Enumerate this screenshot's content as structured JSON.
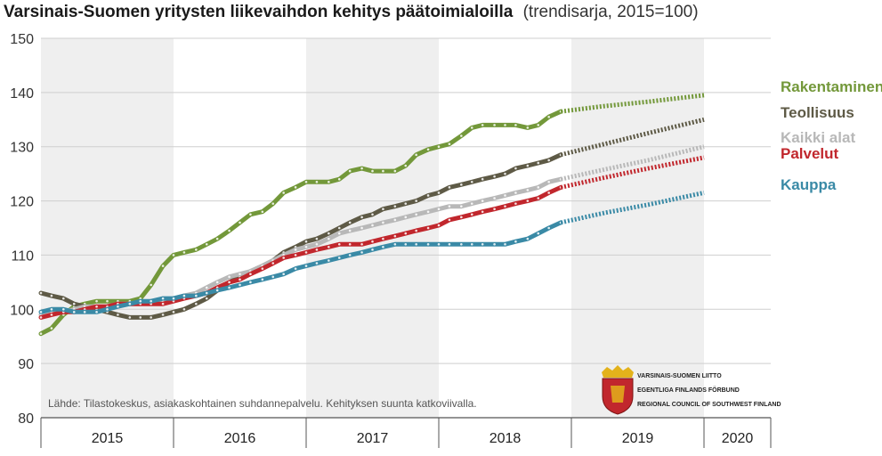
{
  "chart_data": {
    "type": "line",
    "title": "Varsinais-Suomen yritysten liikevaihdon kehitys päätoimialoilla",
    "subtitle": "(trendisarja, 2015=100)",
    "source_note": "Lähde: Tilastokeskus, asiakaskohtainen suhdannepalvelu. Kehityksen suunta katkoviivalla.",
    "logo_text": [
      "VARSINAIS-SUOMEN LIITTO",
      "EGENTLIGA FINLANDS FÖRBUND",
      "REGIONAL COUNCIL OF SOUTHWEST FINLAND"
    ],
    "ylim": [
      80,
      150
    ],
    "yticks": [
      80,
      90,
      100,
      110,
      120,
      130,
      140,
      150
    ],
    "xlim": [
      2015,
      2020.5
    ],
    "year_labels": [
      "2015",
      "2016",
      "2017",
      "2018",
      "2019",
      "2020"
    ],
    "grid": true,
    "legend": "labels at right end of lines",
    "series": [
      {
        "name": "Rakentaminen",
        "color": "#73983a",
        "points": [
          [
            2015.0,
            95.5
          ],
          [
            2015.08,
            96.5
          ],
          [
            2015.17,
            99
          ],
          [
            2015.25,
            100.5
          ],
          [
            2015.33,
            101
          ],
          [
            2015.42,
            101.5
          ],
          [
            2015.5,
            101.5
          ],
          [
            2015.58,
            101.5
          ],
          [
            2015.67,
            101.5
          ],
          [
            2015.75,
            102
          ],
          [
            2015.83,
            104.5
          ],
          [
            2015.92,
            108
          ],
          [
            2016.0,
            110
          ],
          [
            2016.08,
            110.5
          ],
          [
            2016.17,
            111
          ],
          [
            2016.25,
            112
          ],
          [
            2016.33,
            113
          ],
          [
            2016.42,
            114.5
          ],
          [
            2016.5,
            116
          ],
          [
            2016.58,
            117.5
          ],
          [
            2016.67,
            118
          ],
          [
            2016.75,
            119.5
          ],
          [
            2016.83,
            121.5
          ],
          [
            2016.92,
            122.5
          ],
          [
            2017.0,
            123.5
          ],
          [
            2017.08,
            123.5
          ],
          [
            2017.17,
            123.5
          ],
          [
            2017.25,
            124
          ],
          [
            2017.33,
            125.5
          ],
          [
            2017.42,
            126
          ],
          [
            2017.5,
            125.5
          ],
          [
            2017.58,
            125.5
          ],
          [
            2017.67,
            125.5
          ],
          [
            2017.75,
            126.5
          ],
          [
            2017.83,
            128.5
          ],
          [
            2017.92,
            129.5
          ],
          [
            2018.0,
            130
          ],
          [
            2018.08,
            130.5
          ],
          [
            2018.17,
            132
          ],
          [
            2018.25,
            133.5
          ],
          [
            2018.33,
            134
          ],
          [
            2018.42,
            134
          ],
          [
            2018.5,
            134
          ],
          [
            2018.58,
            134
          ],
          [
            2018.67,
            133.5
          ],
          [
            2018.75,
            134
          ],
          [
            2018.83,
            135.5
          ],
          [
            2018.92,
            136.5
          ]
        ],
        "trend": [
          [
            2018.92,
            136.5
          ],
          [
            2019.25,
            137.5
          ],
          [
            2019.58,
            138.3
          ],
          [
            2020.0,
            139.5
          ]
        ]
      },
      {
        "name": "Teollisuus",
        "color": "#5e5a46",
        "points": [
          [
            2015.0,
            103
          ],
          [
            2015.08,
            102.5
          ],
          [
            2015.17,
            102
          ],
          [
            2015.25,
            101
          ],
          [
            2015.33,
            100.5
          ],
          [
            2015.42,
            100
          ],
          [
            2015.5,
            99.5
          ],
          [
            2015.58,
            99
          ],
          [
            2015.67,
            98.5
          ],
          [
            2015.75,
            98.5
          ],
          [
            2015.83,
            98.5
          ],
          [
            2015.92,
            99
          ],
          [
            2016.0,
            99.5
          ],
          [
            2016.08,
            100
          ],
          [
            2016.17,
            101
          ],
          [
            2016.25,
            102
          ],
          [
            2016.33,
            103.5
          ],
          [
            2016.42,
            105
          ],
          [
            2016.5,
            106
          ],
          [
            2016.58,
            107
          ],
          [
            2016.67,
            108
          ],
          [
            2016.75,
            109
          ],
          [
            2016.83,
            110.5
          ],
          [
            2016.92,
            111.5
          ],
          [
            2017.0,
            112.5
          ],
          [
            2017.08,
            113
          ],
          [
            2017.17,
            114
          ],
          [
            2017.25,
            115
          ],
          [
            2017.33,
            116
          ],
          [
            2017.42,
            117
          ],
          [
            2017.5,
            117.5
          ],
          [
            2017.58,
            118.5
          ],
          [
            2017.67,
            119
          ],
          [
            2017.75,
            119.5
          ],
          [
            2017.83,
            120
          ],
          [
            2017.92,
            121
          ],
          [
            2018.0,
            121.5
          ],
          [
            2018.08,
            122.5
          ],
          [
            2018.17,
            123
          ],
          [
            2018.25,
            123.5
          ],
          [
            2018.33,
            124
          ],
          [
            2018.42,
            124.5
          ],
          [
            2018.5,
            125
          ],
          [
            2018.58,
            126
          ],
          [
            2018.67,
            126.5
          ],
          [
            2018.75,
            127
          ],
          [
            2018.83,
            127.5
          ],
          [
            2018.92,
            128.5
          ]
        ],
        "trend": [
          [
            2018.92,
            128.5
          ],
          [
            2019.25,
            130.5
          ],
          [
            2019.58,
            132.5
          ],
          [
            2020.0,
            135
          ]
        ]
      },
      {
        "name": "Kaikki alat",
        "color": "#b8b8b8",
        "points": [
          [
            2015.0,
            99
          ],
          [
            2015.08,
            99.5
          ],
          [
            2015.17,
            99.5
          ],
          [
            2015.25,
            100
          ],
          [
            2015.33,
            100.5
          ],
          [
            2015.42,
            100.5
          ],
          [
            2015.5,
            100.5
          ],
          [
            2015.58,
            101
          ],
          [
            2015.67,
            101
          ],
          [
            2015.75,
            101
          ],
          [
            2015.83,
            101.5
          ],
          [
            2015.92,
            101.5
          ],
          [
            2016.0,
            102
          ],
          [
            2016.08,
            102.5
          ],
          [
            2016.17,
            103
          ],
          [
            2016.25,
            104
          ],
          [
            2016.33,
            105
          ],
          [
            2016.42,
            106
          ],
          [
            2016.5,
            106.5
          ],
          [
            2016.58,
            107
          ],
          [
            2016.67,
            108
          ],
          [
            2016.75,
            109
          ],
          [
            2016.83,
            110
          ],
          [
            2016.92,
            111
          ],
          [
            2017.0,
            111.5
          ],
          [
            2017.08,
            112
          ],
          [
            2017.17,
            113
          ],
          [
            2017.25,
            114
          ],
          [
            2017.33,
            114.5
          ],
          [
            2017.42,
            115
          ],
          [
            2017.5,
            115.5
          ],
          [
            2017.58,
            116
          ],
          [
            2017.67,
            116.5
          ],
          [
            2017.75,
            117
          ],
          [
            2017.83,
            117.5
          ],
          [
            2017.92,
            118
          ],
          [
            2018.0,
            118.5
          ],
          [
            2018.08,
            119
          ],
          [
            2018.17,
            119
          ],
          [
            2018.25,
            119.5
          ],
          [
            2018.33,
            120
          ],
          [
            2018.42,
            120.5
          ],
          [
            2018.5,
            121
          ],
          [
            2018.58,
            121.5
          ],
          [
            2018.67,
            122
          ],
          [
            2018.75,
            122.5
          ],
          [
            2018.83,
            123.5
          ],
          [
            2018.92,
            124
          ]
        ],
        "trend": [
          [
            2018.92,
            124
          ],
          [
            2019.25,
            125.8
          ],
          [
            2019.58,
            127.5
          ],
          [
            2020.0,
            130
          ]
        ]
      },
      {
        "name": "Palvelut",
        "color": "#c1272d",
        "points": [
          [
            2015.0,
            98.5
          ],
          [
            2015.08,
            99
          ],
          [
            2015.17,
            99.5
          ],
          [
            2015.25,
            99.5
          ],
          [
            2015.33,
            100
          ],
          [
            2015.42,
            100.5
          ],
          [
            2015.5,
            100.5
          ],
          [
            2015.58,
            101
          ],
          [
            2015.67,
            101
          ],
          [
            2015.75,
            101
          ],
          [
            2015.83,
            101
          ],
          [
            2015.92,
            101
          ],
          [
            2016.0,
            101.5
          ],
          [
            2016.08,
            102
          ],
          [
            2016.17,
            102.5
          ],
          [
            2016.25,
            103
          ],
          [
            2016.33,
            104
          ],
          [
            2016.42,
            105
          ],
          [
            2016.5,
            105.5
          ],
          [
            2016.58,
            106.5
          ],
          [
            2016.67,
            107.5
          ],
          [
            2016.75,
            108.5
          ],
          [
            2016.83,
            109.5
          ],
          [
            2016.92,
            110
          ],
          [
            2017.0,
            110.5
          ],
          [
            2017.08,
            111
          ],
          [
            2017.17,
            111.5
          ],
          [
            2017.25,
            112
          ],
          [
            2017.33,
            112
          ],
          [
            2017.42,
            112
          ],
          [
            2017.5,
            112.5
          ],
          [
            2017.58,
            113
          ],
          [
            2017.67,
            113.5
          ],
          [
            2017.75,
            114
          ],
          [
            2017.83,
            114.5
          ],
          [
            2017.92,
            115
          ],
          [
            2018.0,
            115.5
          ],
          [
            2018.08,
            116.5
          ],
          [
            2018.17,
            117
          ],
          [
            2018.25,
            117.5
          ],
          [
            2018.33,
            118
          ],
          [
            2018.42,
            118.5
          ],
          [
            2018.5,
            119
          ],
          [
            2018.58,
            119.5
          ],
          [
            2018.67,
            120
          ],
          [
            2018.75,
            120.5
          ],
          [
            2018.83,
            121.5
          ],
          [
            2018.92,
            122.5
          ]
        ],
        "trend": [
          [
            2018.92,
            122.5
          ],
          [
            2019.25,
            124.3
          ],
          [
            2019.58,
            126
          ],
          [
            2020.0,
            128
          ]
        ]
      },
      {
        "name": "Kauppa",
        "color": "#3a8aa6",
        "points": [
          [
            2015.0,
            99.5
          ],
          [
            2015.08,
            100
          ],
          [
            2015.17,
            100
          ],
          [
            2015.25,
            99.5
          ],
          [
            2015.33,
            99.5
          ],
          [
            2015.42,
            99.5
          ],
          [
            2015.5,
            100
          ],
          [
            2015.58,
            100.5
          ],
          [
            2015.67,
            101
          ],
          [
            2015.75,
            101.5
          ],
          [
            2015.83,
            101.5
          ],
          [
            2015.92,
            102
          ],
          [
            2016.0,
            102
          ],
          [
            2016.08,
            102.5
          ],
          [
            2016.17,
            102.5
          ],
          [
            2016.25,
            103
          ],
          [
            2016.33,
            103.5
          ],
          [
            2016.42,
            104
          ],
          [
            2016.5,
            104.5
          ],
          [
            2016.58,
            105
          ],
          [
            2016.67,
            105.5
          ],
          [
            2016.75,
            106
          ],
          [
            2016.83,
            106.5
          ],
          [
            2016.92,
            107.5
          ],
          [
            2017.0,
            108
          ],
          [
            2017.08,
            108.5
          ],
          [
            2017.17,
            109
          ],
          [
            2017.25,
            109.5
          ],
          [
            2017.33,
            110
          ],
          [
            2017.42,
            110.5
          ],
          [
            2017.5,
            111
          ],
          [
            2017.58,
            111.5
          ],
          [
            2017.67,
            112
          ],
          [
            2017.75,
            112
          ],
          [
            2017.83,
            112
          ],
          [
            2017.92,
            112
          ],
          [
            2018.0,
            112
          ],
          [
            2018.08,
            112
          ],
          [
            2018.17,
            112
          ],
          [
            2018.25,
            112
          ],
          [
            2018.33,
            112
          ],
          [
            2018.42,
            112
          ],
          [
            2018.5,
            112
          ],
          [
            2018.58,
            112.5
          ],
          [
            2018.67,
            113
          ],
          [
            2018.75,
            114
          ],
          [
            2018.83,
            115
          ],
          [
            2018.92,
            116
          ]
        ],
        "trend": [
          [
            2018.92,
            116
          ],
          [
            2019.25,
            117.8
          ],
          [
            2019.58,
            119.3
          ],
          [
            2020.0,
            121.5
          ]
        ]
      }
    ]
  }
}
